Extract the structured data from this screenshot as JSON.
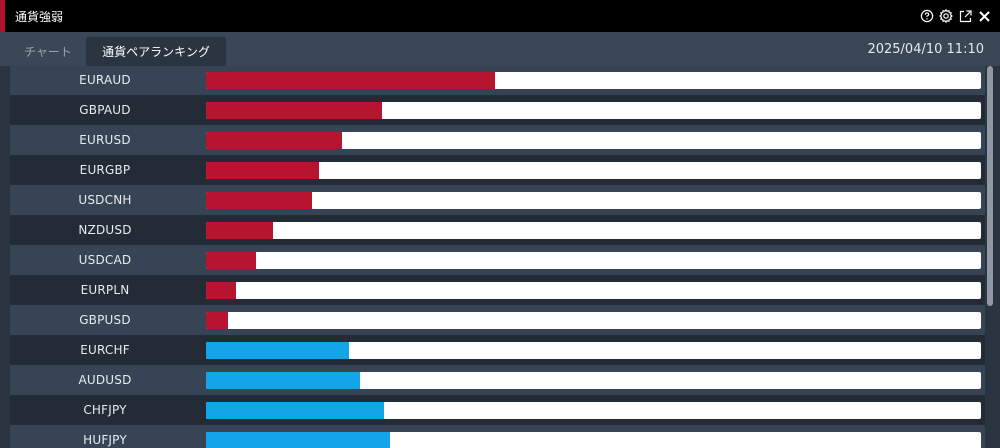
{
  "window": {
    "title": "通貨強弱"
  },
  "header_icons": [
    "help-icon",
    "settings-icon",
    "popout-icon",
    "close-icon"
  ],
  "tabs": [
    {
      "label": "チャート",
      "active": false
    },
    {
      "label": "通貨ペアランキング",
      "active": true
    }
  ],
  "timestamp": "2025/04/10 11:10",
  "colors": {
    "accent": "#b3122f",
    "negative": "#b7142f",
    "positive": "#14a4ea"
  },
  "ranking": [
    {
      "pair": "EURAUD",
      "strength": 0.373,
      "direction": "negative"
    },
    {
      "pair": "GBPAUD",
      "strength": 0.227,
      "direction": "negative"
    },
    {
      "pair": "EURUSD",
      "strength": 0.175,
      "direction": "negative"
    },
    {
      "pair": "EURGBP",
      "strength": 0.146,
      "direction": "negative"
    },
    {
      "pair": "USDCNH",
      "strength": 0.137,
      "direction": "negative"
    },
    {
      "pair": "NZDUSD",
      "strength": 0.087,
      "direction": "negative"
    },
    {
      "pair": "USDCAD",
      "strength": 0.065,
      "direction": "negative"
    },
    {
      "pair": "EURPLN",
      "strength": 0.039,
      "direction": "negative"
    },
    {
      "pair": "GBPUSD",
      "strength": 0.029,
      "direction": "negative"
    },
    {
      "pair": "EURCHF",
      "strength": 0.184,
      "direction": "positive"
    },
    {
      "pair": "AUDUSD",
      "strength": 0.199,
      "direction": "positive"
    },
    {
      "pair": "CHFJPY",
      "strength": 0.23,
      "direction": "positive"
    },
    {
      "pair": "HUFJPY",
      "strength": 0.238,
      "direction": "positive"
    }
  ]
}
